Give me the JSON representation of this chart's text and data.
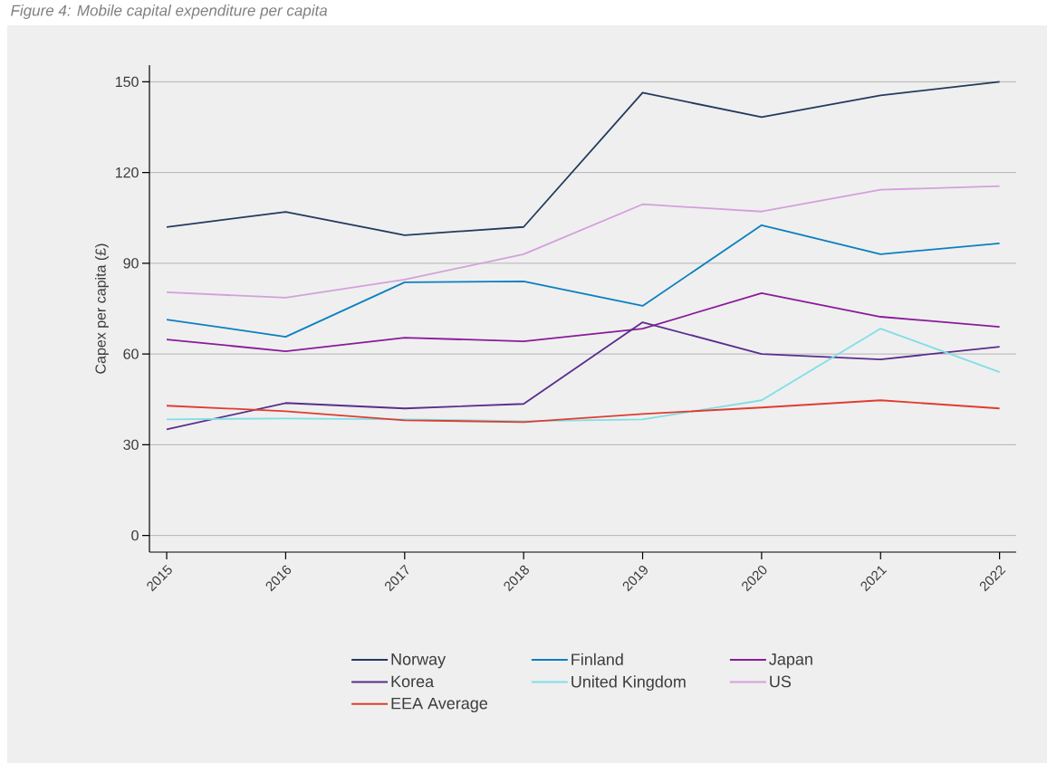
{
  "chart_data": {
    "type": "line",
    "title": "Figure 4: Mobile capital expenditure per capita",
    "ylabel": "Capex per capita (£)",
    "categories": [
      "2015",
      "2016",
      "2017",
      "2018",
      "2019",
      "2020",
      "2021",
      "2022"
    ],
    "series": [
      {
        "name": "Norway",
        "color": "#243a5e",
        "values": [
          102,
          107,
          99.3,
          102,
          146.4,
          138.3,
          145.5,
          150
        ]
      },
      {
        "name": "Finland",
        "color": "#0a7fc0",
        "values": [
          71.4,
          65.7,
          83.7,
          84,
          75.9,
          102.6,
          93,
          96.6
        ]
      },
      {
        "name": "Japan",
        "color": "#8b1a9c",
        "values": [
          64.8,
          60.9,
          65.4,
          64.2,
          68.4,
          80.1,
          72.3,
          69
        ]
      },
      {
        "name": "Korea",
        "color": "#5a2d8c",
        "values": [
          35.1,
          43.8,
          42,
          43.5,
          70.5,
          60,
          58.2,
          62.4
        ]
      },
      {
        "name": "United Kingdom",
        "color": "#7fdfe6",
        "values": [
          38.4,
          38.7,
          38.4,
          37.8,
          38.4,
          44.7,
          68.4,
          54
        ]
      },
      {
        "name": "US",
        "color": "#d4a0dc",
        "values": [
          80.4,
          78.6,
          84.6,
          93,
          109.5,
          107.1,
          114.3,
          115.5
        ]
      },
      {
        "name": "EEA Average",
        "color": "#e03c31",
        "values": [
          42.9,
          41.1,
          38.1,
          37.5,
          40.2,
          42.3,
          44.7,
          42
        ]
      }
    ],
    "ylim": [
      -5.5,
      155.5
    ],
    "yticks": [
      0,
      30,
      60,
      90,
      120,
      150
    ],
    "grid": "y",
    "legend": "bottom"
  }
}
